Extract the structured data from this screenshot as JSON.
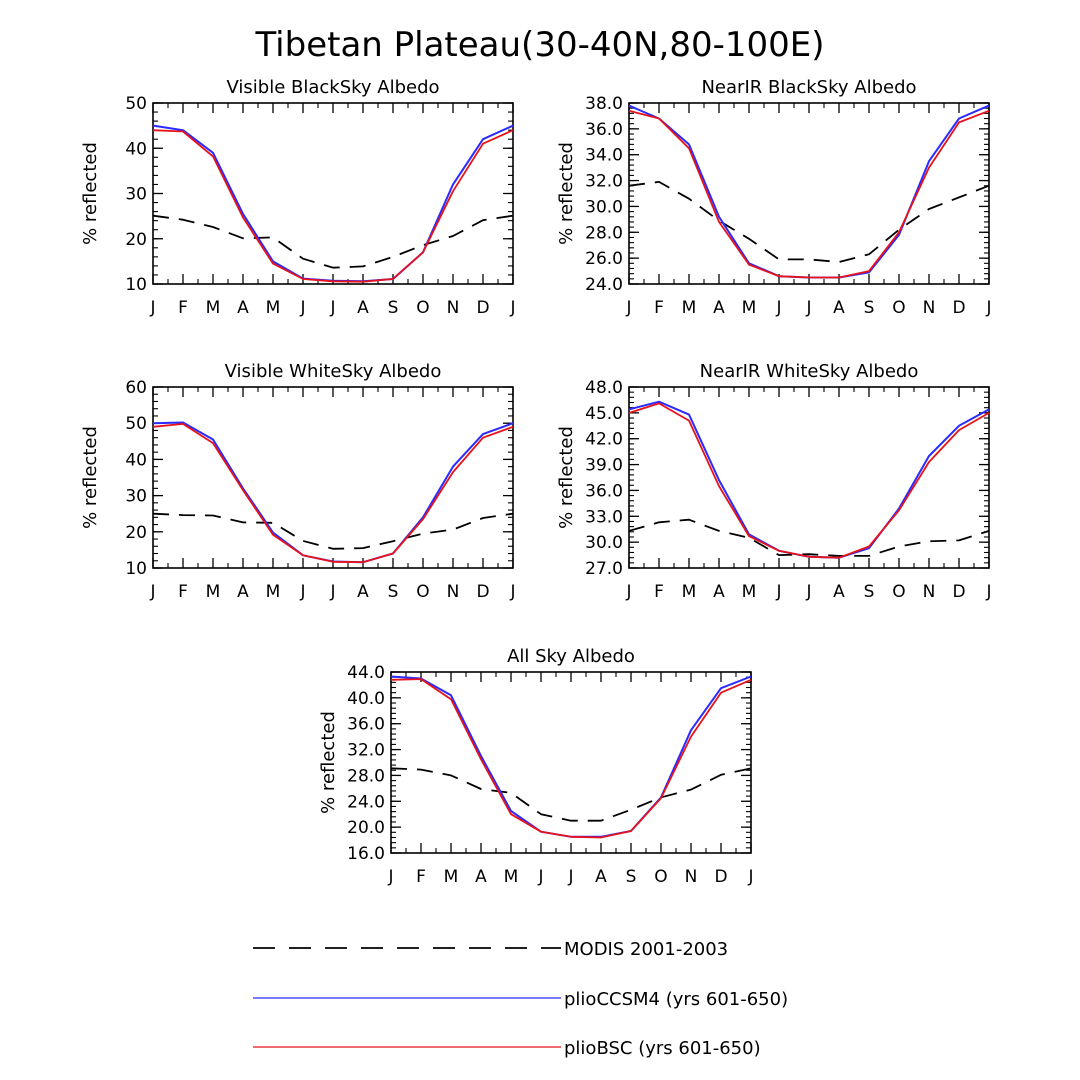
{
  "title": "Tibetan Plateau(30-40N,80-100E)",
  "months": [
    "J",
    "F",
    "M",
    "A",
    "M",
    "J",
    "J",
    "A",
    "S",
    "O",
    "N",
    "D",
    "J"
  ],
  "series_info": [
    {
      "key": "modis",
      "label": "MODIS 2001-2003",
      "color": "#000000",
      "dash": true
    },
    {
      "key": "ccsm4",
      "label": "plioCCSM4 (yrs 601-650)",
      "color": "#2b2bff",
      "dash": false
    },
    {
      "key": "bsc",
      "label": "plioBSC (yrs 601-650)",
      "color": "#e8121a",
      "dash": false
    }
  ],
  "chart_data": [
    {
      "type": "line",
      "title": "Visible BlackSky Albedo",
      "ylabel": "% reflected",
      "ylim": [
        10,
        50
      ],
      "yticks": [
        10,
        20,
        30,
        40,
        50
      ],
      "ytick_labels": [
        "10",
        "20",
        "30",
        "40",
        "50"
      ],
      "ymajor": 10,
      "yminor": 2,
      "series": [
        {
          "name": "MODIS 2001-2003",
          "values": [
            25.1,
            24.2,
            22.6,
            20.1,
            20.3,
            15.6,
            13.6,
            13.9,
            16.0,
            18.6,
            20.6,
            24.1,
            25.1
          ]
        },
        {
          "name": "plioCCSM4 (yrs 601-650)",
          "values": [
            45.0,
            44.0,
            39.0,
            25.5,
            15.0,
            11.2,
            10.7,
            10.6,
            11.1,
            17.0,
            32.0,
            42.0,
            45.0
          ]
        },
        {
          "name": "plioBSC (yrs 601-650)",
          "values": [
            44.0,
            43.7,
            38.2,
            24.7,
            14.5,
            11.1,
            10.6,
            10.5,
            11.1,
            17.0,
            30.5,
            41.0,
            44.0
          ]
        }
      ]
    },
    {
      "type": "line",
      "title": "NearIR BlackSky Albedo",
      "ylabel": "% reflected",
      "ylim": [
        24,
        38
      ],
      "yticks": [
        24,
        26,
        28,
        30,
        32,
        34,
        36,
        38
      ],
      "ytick_labels": [
        "24.0",
        "26.0",
        "28.0",
        "30.0",
        "32.0",
        "34.0",
        "36.0",
        "38.0"
      ],
      "ymajor": 2,
      "yminor": 0.4,
      "series": [
        {
          "name": "MODIS 2001-2003",
          "values": [
            31.6,
            31.9,
            30.6,
            28.9,
            27.5,
            25.9,
            25.9,
            25.7,
            26.3,
            28.2,
            29.8,
            30.7,
            31.6
          ]
        },
        {
          "name": "plioCCSM4 (yrs 601-650)",
          "values": [
            37.8,
            36.8,
            34.8,
            29.2,
            25.6,
            24.6,
            24.5,
            24.5,
            24.9,
            27.8,
            33.5,
            36.8,
            37.8
          ]
        },
        {
          "name": "plioBSC (yrs 601-650)",
          "values": [
            37.4,
            36.8,
            34.5,
            28.8,
            25.5,
            24.6,
            24.5,
            24.5,
            25.0,
            28.0,
            33.0,
            36.5,
            37.4
          ]
        }
      ]
    },
    {
      "type": "line",
      "title": "Visible WhiteSky Albedo",
      "ylabel": "% reflected",
      "ylim": [
        10,
        60
      ],
      "yticks": [
        10,
        20,
        30,
        40,
        50,
        60
      ],
      "ytick_labels": [
        "10",
        "20",
        "30",
        "40",
        "50",
        "60"
      ],
      "ymajor": 10,
      "yminor": 2,
      "series": [
        {
          "name": "MODIS 2001-2003",
          "values": [
            25.0,
            24.6,
            24.5,
            22.6,
            22.5,
            17.5,
            15.3,
            15.5,
            17.4,
            19.5,
            20.6,
            23.8,
            25.0
          ]
        },
        {
          "name": "plioCCSM4 (yrs 601-650)",
          "values": [
            50.0,
            50.2,
            45.5,
            32.0,
            19.8,
            13.5,
            11.8,
            11.6,
            14.0,
            24.0,
            38.0,
            47.0,
            50.0
          ]
        },
        {
          "name": "plioBSC (yrs 601-650)",
          "values": [
            49.0,
            49.8,
            44.5,
            31.5,
            19.2,
            13.5,
            11.7,
            11.6,
            14.0,
            23.5,
            36.5,
            46.0,
            49.0
          ]
        }
      ]
    },
    {
      "type": "line",
      "title": "NearIR WhiteSky Albedo",
      "ylabel": "% reflected",
      "ylim": [
        27,
        48
      ],
      "yticks": [
        27,
        30,
        33,
        36,
        39,
        42,
        45,
        48
      ],
      "ytick_labels": [
        "27.0",
        "30.0",
        "33.0",
        "36.0",
        "39.0",
        "42.0",
        "45.0",
        "48.0"
      ],
      "ymajor": 3,
      "yminor": 0.6,
      "series": [
        {
          "name": "MODIS 2001-2003",
          "values": [
            31.3,
            32.3,
            32.6,
            31.3,
            30.5,
            28.5,
            28.6,
            28.4,
            28.4,
            29.5,
            30.1,
            30.2,
            31.3
          ]
        },
        {
          "name": "plioCCSM4 (yrs 601-650)",
          "values": [
            45.4,
            46.3,
            44.8,
            37.2,
            30.9,
            29.0,
            28.3,
            28.2,
            29.3,
            33.9,
            40.0,
            43.5,
            45.4
          ]
        },
        {
          "name": "plioBSC (yrs 601-650)",
          "values": [
            45.0,
            46.1,
            44.1,
            36.5,
            30.7,
            29.0,
            28.3,
            28.2,
            29.5,
            33.7,
            39.3,
            43.0,
            45.0
          ]
        }
      ]
    },
    {
      "type": "line",
      "title": "All Sky Albedo",
      "ylabel": "% reflected",
      "ylim": [
        16,
        44
      ],
      "yticks": [
        16,
        20,
        24,
        28,
        32,
        36,
        40,
        44
      ],
      "ytick_labels": [
        "16.0",
        "20.0",
        "24.0",
        "28.0",
        "32.0",
        "36.0",
        "40.0",
        "44.0"
      ],
      "ymajor": 4,
      "yminor": 0.8,
      "series": [
        {
          "name": "MODIS 2001-2003",
          "values": [
            29.1,
            28.9,
            28.0,
            25.9,
            25.3,
            22.0,
            21.0,
            21.0,
            22.7,
            24.6,
            25.8,
            28.1,
            29.1
          ]
        },
        {
          "name": "plioCCSM4 (yrs 601-650)",
          "values": [
            43.3,
            43.0,
            40.4,
            31.0,
            22.5,
            19.3,
            18.5,
            18.5,
            19.4,
            24.6,
            35.0,
            41.5,
            43.3
          ]
        },
        {
          "name": "plioBSC (yrs 601-650)",
          "values": [
            42.8,
            42.9,
            39.8,
            30.5,
            22.0,
            19.3,
            18.5,
            18.4,
            19.4,
            24.5,
            34.0,
            40.8,
            42.8
          ]
        }
      ]
    }
  ]
}
